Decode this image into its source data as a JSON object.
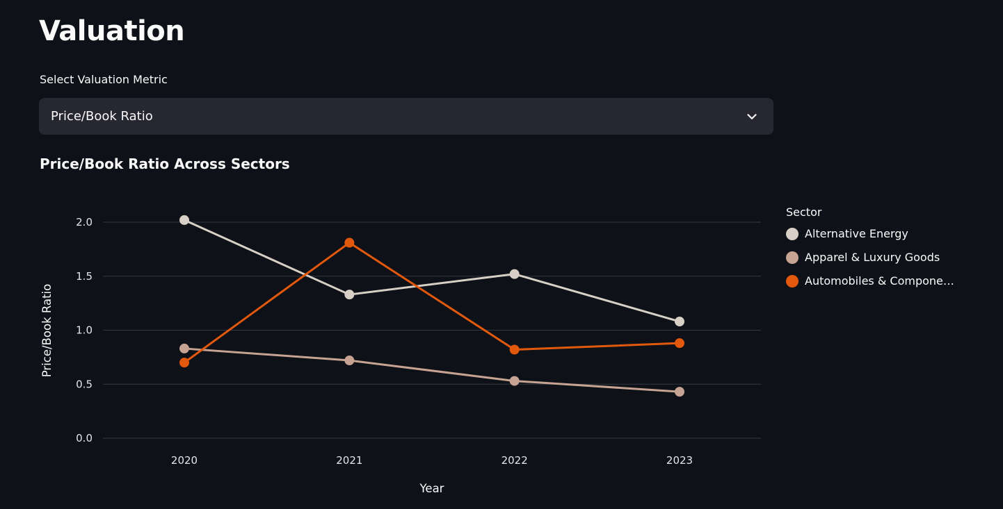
{
  "page": {
    "title": "Valuation"
  },
  "metric_select": {
    "label": "Select Valuation Metric",
    "value": "Price/Book Ratio"
  },
  "section": {
    "chart_title": "Price/Book Ratio Across Sectors"
  },
  "chart_data": {
    "type": "line",
    "title": "Price/Book Ratio Across Sectors",
    "x": [
      2020,
      2021,
      2022,
      2023
    ],
    "x_tick_labels": [
      "2020",
      "2021",
      "2022",
      "2023"
    ],
    "xlabel": "Year",
    "ylabel": "Price/Book Ratio",
    "ylim": [
      0.0,
      2.0
    ],
    "y_tick_labels": [
      "0.0",
      "0.5",
      "1.0",
      "1.5",
      "2.0"
    ],
    "grid": true,
    "legend_title": "Sector",
    "legend_position": "right",
    "series": [
      {
        "name": "Alternative Energy",
        "color": "#d8d0c6",
        "values": [
          2.02,
          1.33,
          1.52,
          1.08
        ]
      },
      {
        "name": "Apparel & Luxury Goods",
        "color": "#c7a393",
        "values": [
          0.83,
          0.72,
          0.53,
          0.43
        ]
      },
      {
        "name": "Automobiles & Compone…",
        "color": "#e2590e",
        "values": [
          0.7,
          1.81,
          0.82,
          0.88
        ]
      }
    ]
  },
  "colors": {
    "background": "#0e1117",
    "widget_background": "#262730",
    "text": "#fafafa",
    "gridline": "#343944",
    "tick_text": "#e4e6ea"
  }
}
